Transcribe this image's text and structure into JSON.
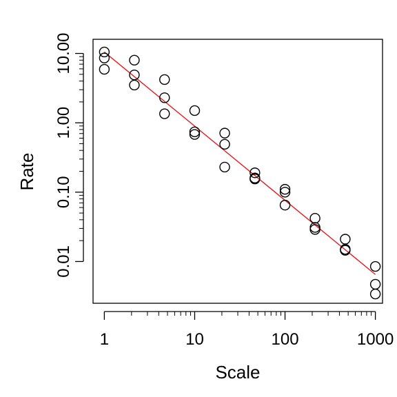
{
  "chart_data": {
    "type": "scatter",
    "xlabel": "Scale",
    "ylabel": "Rate",
    "xscale": "log",
    "yscale": "log",
    "xlim": [
      0.75,
      1200
    ],
    "ylim": [
      0.0025,
      16
    ],
    "grid": false,
    "xticks": [
      {
        "value": 1,
        "label": "1"
      },
      {
        "value": 10,
        "label": "10"
      },
      {
        "value": 100,
        "label": "100"
      },
      {
        "value": 1000,
        "label": "1000"
      }
    ],
    "yticks": [
      {
        "value": 0.01,
        "label": "0.01"
      },
      {
        "value": 0.1,
        "label": "0.10"
      },
      {
        "value": 1,
        "label": "1.00"
      },
      {
        "value": 10,
        "label": "10.00"
      }
    ],
    "points": [
      {
        "x": 1,
        "y": 10.5
      },
      {
        "x": 1,
        "y": 8.6
      },
      {
        "x": 1,
        "y": 5.9
      },
      {
        "x": 2.15,
        "y": 8.0
      },
      {
        "x": 2.15,
        "y": 4.9
      },
      {
        "x": 2.15,
        "y": 3.5
      },
      {
        "x": 4.64,
        "y": 4.2
      },
      {
        "x": 4.64,
        "y": 2.3
      },
      {
        "x": 4.64,
        "y": 1.35
      },
      {
        "x": 10,
        "y": 1.5
      },
      {
        "x": 10,
        "y": 0.74
      },
      {
        "x": 10,
        "y": 0.68
      },
      {
        "x": 21.5,
        "y": 0.71
      },
      {
        "x": 21.5,
        "y": 0.49
      },
      {
        "x": 21.5,
        "y": 0.23
      },
      {
        "x": 46.4,
        "y": 0.19
      },
      {
        "x": 46.4,
        "y": 0.16
      },
      {
        "x": 46.4,
        "y": 0.155
      },
      {
        "x": 100,
        "y": 0.11
      },
      {
        "x": 100,
        "y": 0.1
      },
      {
        "x": 100,
        "y": 0.065
      },
      {
        "x": 215,
        "y": 0.042
      },
      {
        "x": 215,
        "y": 0.031
      },
      {
        "x": 215,
        "y": 0.029
      },
      {
        "x": 464,
        "y": 0.021
      },
      {
        "x": 464,
        "y": 0.015
      },
      {
        "x": 464,
        "y": 0.0145
      },
      {
        "x": 1000,
        "y": 0.0085
      },
      {
        "x": 1000,
        "y": 0.0047
      },
      {
        "x": 1000,
        "y": 0.0034
      }
    ],
    "fit_line": {
      "color": "#e41a1c",
      "points": [
        {
          "x": 1,
          "y": 10.5
        },
        {
          "x": 1000,
          "y": 0.0065
        }
      ]
    },
    "point_color": "#000000"
  }
}
